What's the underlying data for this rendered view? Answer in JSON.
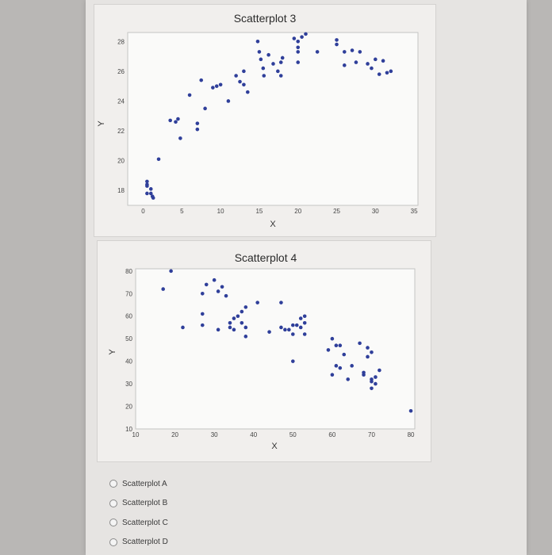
{
  "chart_data": [
    {
      "type": "scatter",
      "title": "Scatterplot 3",
      "xlabel": "X",
      "ylabel": "Y",
      "xlim": [
        -2,
        35.5
      ],
      "ylim": [
        17,
        28.6
      ],
      "xticks": [
        0,
        5,
        10,
        15,
        20,
        25,
        30,
        35
      ],
      "yticks": [
        18,
        20,
        22,
        24,
        26,
        28
      ],
      "series": [
        {
          "x": [
            0.5,
            0.5,
            0.5,
            1.0,
            1.0,
            1.2,
            0.5,
            1.3,
            2.0,
            3.5,
            4.2,
            4.8,
            4.5,
            6.0,
            7.0,
            7.0,
            7.5,
            8.0,
            9.0,
            9.5,
            10.0,
            11.0,
            12.0,
            12.5,
            13.0,
            13.0,
            13.5,
            14.8,
            15.0,
            15.2,
            15.6,
            15.5,
            16.2,
            16.8,
            17.4,
            17.8,
            18.0,
            17.8,
            19.5,
            20.0,
            20.0,
            20.0,
            20.5,
            20.0,
            21.0,
            22.5,
            25.0,
            25.0,
            26.0,
            27.0,
            28.0,
            26.0,
            27.5,
            29.0,
            29.5,
            30.0,
            31.0,
            30.5,
            31.5,
            32.0
          ],
          "y": [
            18.6,
            18.4,
            18.3,
            18.1,
            17.8,
            17.6,
            17.8,
            17.5,
            20.1,
            22.7,
            22.6,
            21.5,
            22.8,
            24.4,
            22.5,
            22.1,
            25.4,
            23.5,
            24.9,
            25.0,
            25.1,
            24.0,
            25.7,
            25.3,
            25.1,
            26.0,
            24.6,
            28.0,
            27.3,
            26.8,
            25.7,
            26.2,
            27.1,
            26.5,
            26.0,
            25.7,
            26.9,
            26.6,
            28.2,
            28.0,
            27.6,
            27.3,
            28.3,
            26.6,
            28.5,
            27.3,
            28.1,
            27.8,
            27.3,
            27.4,
            27.3,
            26.4,
            26.6,
            26.5,
            26.2,
            26.8,
            26.7,
            25.8,
            25.9,
            26.0
          ]
        }
      ]
    },
    {
      "type": "scatter",
      "title": "Scatterplot 4",
      "xlabel": "X",
      "ylabel": "Y",
      "xlim": [
        10,
        81
      ],
      "ylim": [
        10,
        81
      ],
      "xticks": [
        10,
        20,
        30,
        40,
        50,
        60,
        70,
        80
      ],
      "yticks": [
        10,
        20,
        30,
        40,
        50,
        60,
        70,
        80
      ],
      "series": [
        {
          "x": [
            17,
            19,
            22,
            27,
            27,
            28,
            27,
            30,
            31,
            31,
            32,
            33,
            34,
            34,
            35,
            35,
            36,
            37,
            37,
            38,
            38,
            38,
            41,
            44,
            47,
            47,
            48,
            49,
            50,
            50,
            51,
            52,
            52,
            53,
            53,
            53,
            50,
            59,
            60,
            61,
            62,
            63,
            61,
            60,
            62,
            64,
            65,
            67,
            68,
            68,
            69,
            69,
            70,
            70,
            70,
            71,
            72,
            71,
            70,
            80
          ],
          "y": [
            72,
            80,
            55,
            56,
            61,
            74,
            70,
            76,
            71,
            54,
            73,
            69,
            55,
            57,
            59,
            54,
            60,
            62,
            57,
            55,
            51,
            64,
            66,
            53,
            55,
            66,
            54,
            54,
            56,
            52,
            56,
            59,
            55,
            60,
            57,
            52,
            40,
            45,
            50,
            47,
            47,
            43,
            38,
            34,
            37,
            32,
            38,
            48,
            35,
            34,
            42,
            46,
            32,
            28,
            44,
            33,
            36,
            30,
            31,
            18
          ]
        }
      ]
    }
  ],
  "options": [
    {
      "label": "Scatterplot A"
    },
    {
      "label": "Scatterplot B"
    },
    {
      "label": "Scatterplot C"
    },
    {
      "label": "Scatterplot D"
    }
  ]
}
